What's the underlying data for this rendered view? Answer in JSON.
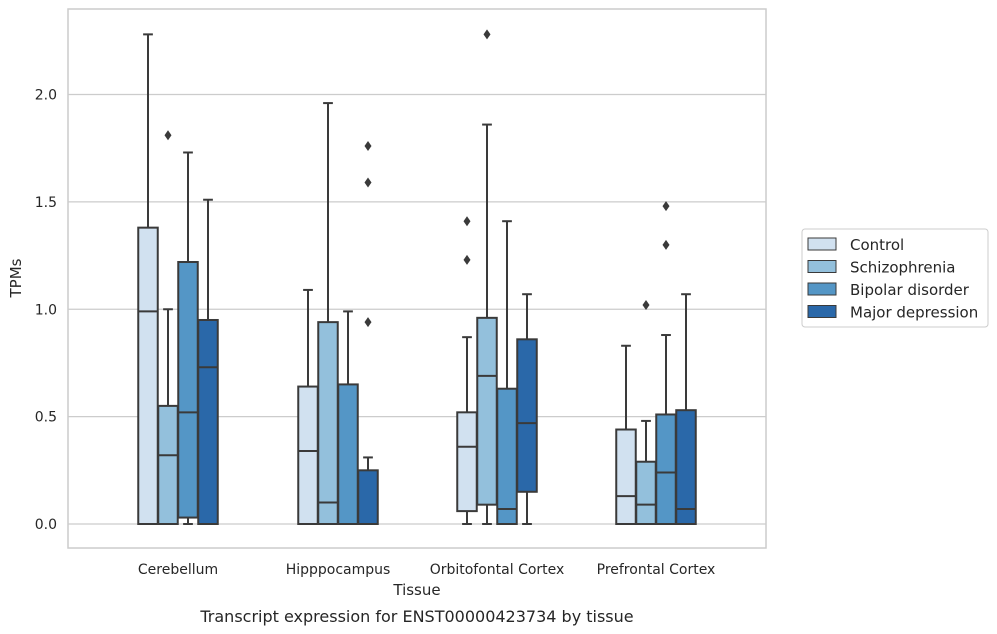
{
  "caption": "Transcript expression for ENST00000423734 by tissue",
  "chart_data": {
    "type": "box",
    "xlabel": "Tissue",
    "ylabel": "TPMs",
    "ylim": [
      -0.11,
      2.4
    ],
    "yticks": [
      0.0,
      0.5,
      1.0,
      1.5,
      2.0
    ],
    "ytick_labels": [
      "0.0",
      "0.5",
      "1.0",
      "1.5",
      "2.0"
    ],
    "grid": "horizontal",
    "legend_position": "right",
    "categories": [
      "Cerebellum",
      "Hipppocampus",
      "Orbitofontal Cortex",
      "Prefrontal Cortex"
    ],
    "series": [
      {
        "name": "Control",
        "color": "#d1e1f0",
        "boxes": [
          {
            "whislo": 0.0,
            "q1": 0.0,
            "med": 0.99,
            "q3": 1.38,
            "whishi": 2.28,
            "fliers": []
          },
          {
            "whislo": 0.0,
            "q1": 0.0,
            "med": 0.34,
            "q3": 0.64,
            "whishi": 1.09,
            "fliers": []
          },
          {
            "whislo": 0.0,
            "q1": 0.06,
            "med": 0.36,
            "q3": 0.52,
            "whishi": 0.87,
            "fliers": [
              1.41,
              1.23
            ]
          },
          {
            "whislo": 0.0,
            "q1": 0.0,
            "med": 0.13,
            "q3": 0.44,
            "whishi": 0.83,
            "fliers": []
          }
        ]
      },
      {
        "name": "Schizophrenia",
        "color": "#93c0dc",
        "boxes": [
          {
            "whislo": 0.0,
            "q1": 0.0,
            "med": 0.32,
            "q3": 0.55,
            "whishi": 1.0,
            "fliers": [
              1.81
            ]
          },
          {
            "whislo": 0.0,
            "q1": 0.0,
            "med": 0.1,
            "q3": 0.94,
            "whishi": 1.96,
            "fliers": []
          },
          {
            "whislo": 0.0,
            "q1": 0.09,
            "med": 0.69,
            "q3": 0.96,
            "whishi": 1.86,
            "fliers": [
              2.28
            ]
          },
          {
            "whislo": 0.0,
            "q1": 0.0,
            "med": 0.09,
            "q3": 0.29,
            "whishi": 0.48,
            "fliers": [
              1.02
            ]
          }
        ]
      },
      {
        "name": "Bipolar disorder",
        "color": "#5496c6",
        "boxes": [
          {
            "whislo": 0.0,
            "q1": 0.03,
            "med": 0.52,
            "q3": 1.22,
            "whishi": 1.73,
            "fliers": []
          },
          {
            "whislo": 0.0,
            "q1": 0.0,
            "med": 0.0,
            "q3": 0.65,
            "whishi": 0.99,
            "fliers": []
          },
          {
            "whislo": 0.0,
            "q1": 0.0,
            "med": 0.07,
            "q3": 0.63,
            "whishi": 1.41,
            "fliers": []
          },
          {
            "whislo": 0.0,
            "q1": 0.0,
            "med": 0.24,
            "q3": 0.51,
            "whishi": 0.88,
            "fliers": [
              1.48,
              1.3
            ]
          }
        ]
      },
      {
        "name": "Major depression",
        "color": "#2a68a9",
        "boxes": [
          {
            "whislo": 0.0,
            "q1": 0.0,
            "med": 0.73,
            "q3": 0.95,
            "whishi": 1.51,
            "fliers": []
          },
          {
            "whislo": 0.0,
            "q1": 0.0,
            "med": 0.0,
            "q3": 0.25,
            "whishi": 0.31,
            "fliers": [
              1.76,
              1.59,
              0.94
            ]
          },
          {
            "whislo": 0.0,
            "q1": 0.15,
            "med": 0.47,
            "q3": 0.86,
            "whishi": 1.07,
            "fliers": []
          },
          {
            "whislo": 0.0,
            "q1": 0.0,
            "med": 0.07,
            "q3": 0.53,
            "whishi": 1.07,
            "fliers": []
          }
        ]
      }
    ]
  }
}
